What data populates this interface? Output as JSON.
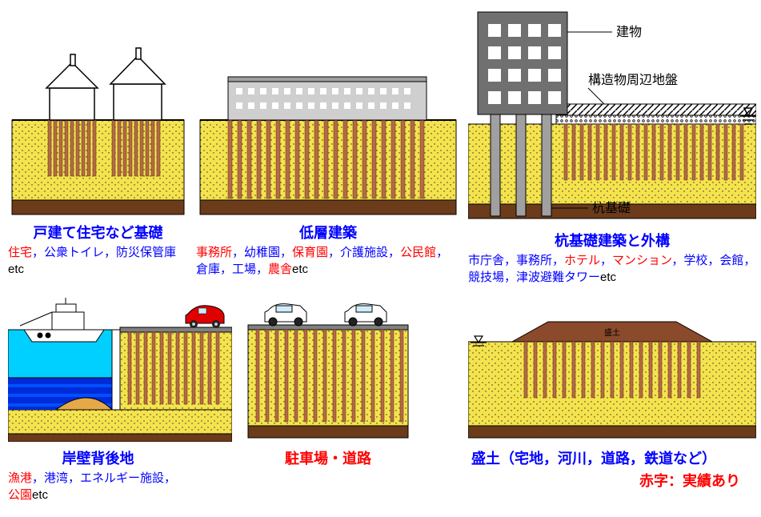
{
  "colors": {
    "soil": "#f5e34d",
    "soil_dots": "#2a2a2a",
    "bedrock": "#6b3b1a",
    "pile": "#b56a46",
    "pile_border": "#5a2e15",
    "building_gray": "#a0a0a0",
    "building_gray_dark": "#707070",
    "building_white": "#ffffff",
    "water": "#00d0ff",
    "sea_blue": "#002bd8",
    "sand": "#e5a94a",
    "road": "#808080",
    "ground_line": "#000000",
    "hatch": "#000000",
    "embankment": "#8b4a2b",
    "title_blue": "#0000ff",
    "text_red": "#ff0000"
  },
  "box1": {
    "title": "戸建て住宅など基礎",
    "desc_parts": [
      {
        "t": "住宅",
        "c": "r"
      },
      {
        "t": "，公衆トイレ，防災保管庫",
        "c": "b"
      },
      {
        "t": "etc",
        "c": "k"
      }
    ]
  },
  "box2": {
    "title": "低層建築",
    "desc_parts": [
      {
        "t": "事務所",
        "c": "r"
      },
      {
        "t": "，幼稚園，",
        "c": "b"
      },
      {
        "t": "保育園",
        "c": "r"
      },
      {
        "t": "，介護施設，",
        "c": "b"
      },
      {
        "t": "公民館",
        "c": "r"
      },
      {
        "t": "，倉庫，工場，",
        "c": "b"
      },
      {
        "t": "農舎",
        "c": "r"
      },
      {
        "t": "etc",
        "c": "k"
      }
    ]
  },
  "box3": {
    "title": "杭基礎建築と外構",
    "ann_building": "建物",
    "ann_ground": "構造物周辺地盤",
    "ann_pilebase": "杭基礎",
    "desc_parts": [
      {
        "t": "市庁舎，事務所，",
        "c": "b"
      },
      {
        "t": "ホテル",
        "c": "r"
      },
      {
        "t": "，",
        "c": "b"
      },
      {
        "t": "マンション",
        "c": "r"
      },
      {
        "t": "，学校，会館，競技場，津波避難タワー",
        "c": "b"
      },
      {
        "t": "etc",
        "c": "k"
      }
    ]
  },
  "box4": {
    "title": "岸壁背後地",
    "desc_parts": [
      {
        "t": "漁港",
        "c": "r"
      },
      {
        "t": "，港湾，エネルギー施設，",
        "c": "b"
      },
      {
        "t": "公園",
        "c": "r"
      },
      {
        "t": "etc",
        "c": "k"
      }
    ]
  },
  "box5": {
    "title": "駐車場・道路",
    "title_red": true
  },
  "box6": {
    "title_parts": [
      {
        "t": "盛土（",
        "c": "b"
      },
      {
        "t": "宅地",
        "c": "r"
      },
      {
        "t": "，",
        "c": "b"
      },
      {
        "t": "河川",
        "c": "r"
      },
      {
        "t": "，道路，鉄道など）",
        "c": "b"
      }
    ],
    "ann_embankment": "盛土"
  },
  "legend": "赤字：実績あり"
}
